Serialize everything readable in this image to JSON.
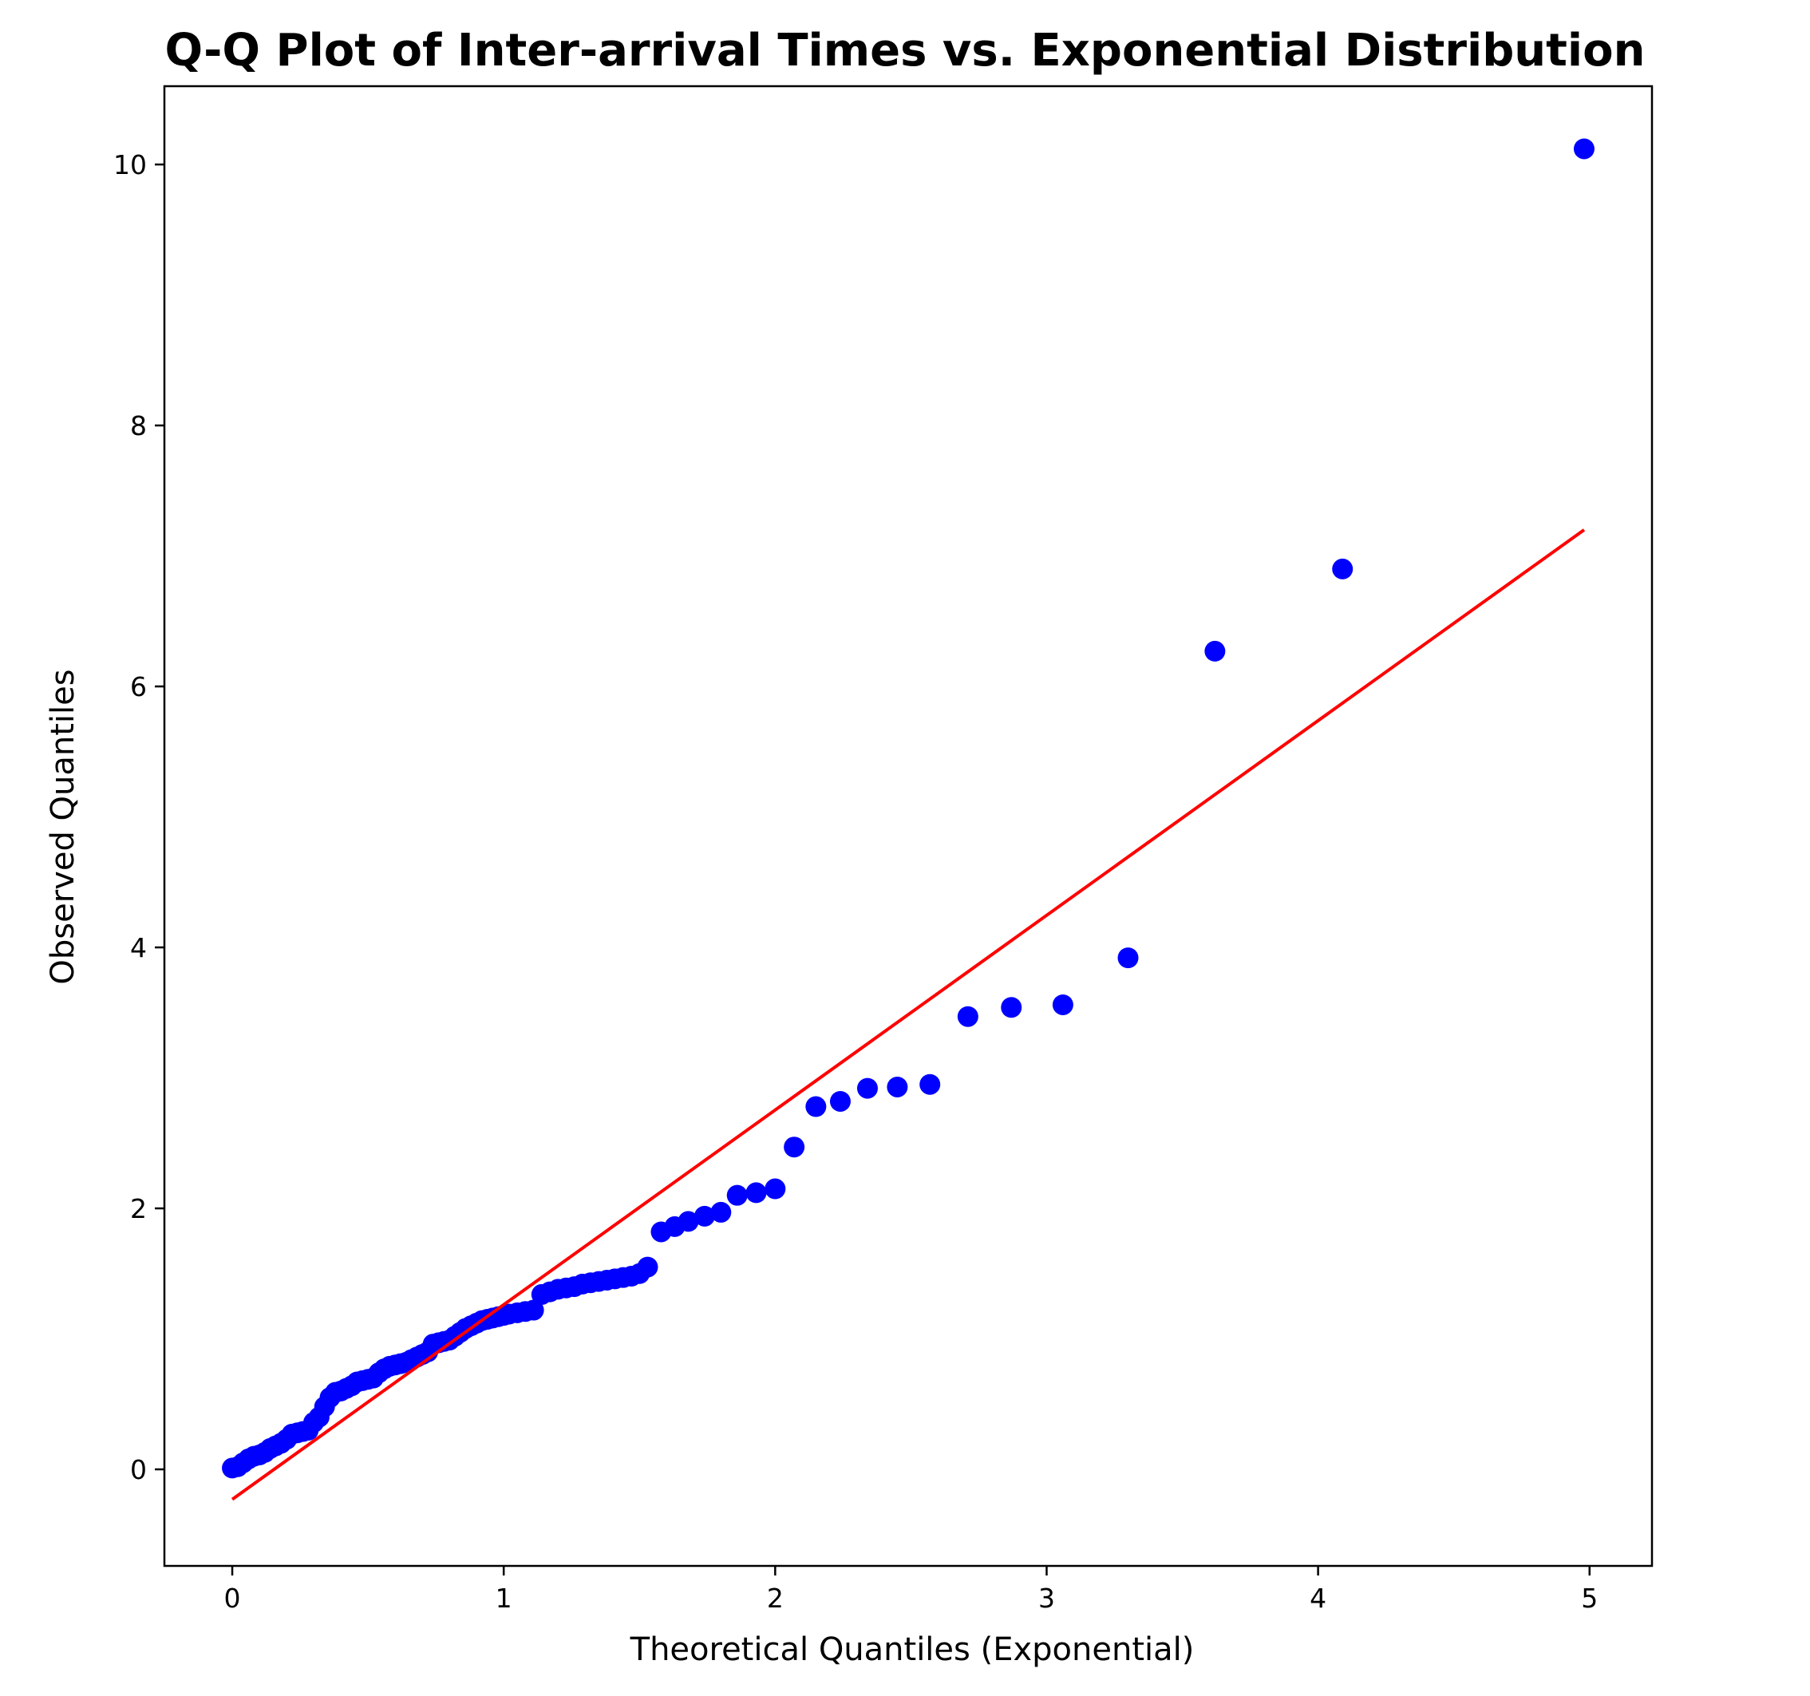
{
  "chart_data": {
    "type": "scatter",
    "title": "Q-Q Plot of Inter-arrival Times vs. Exponential Distribution",
    "xlabel": "Theoretical Quantiles (Exponential)",
    "ylabel": "Observed Quantiles",
    "xlim": [
      -0.25,
      5.23
    ],
    "ylim": [
      -0.74,
      10.6
    ],
    "grid": false,
    "legend": null,
    "x_ticks": [
      "0",
      "1",
      "2",
      "3",
      "4",
      "5"
    ],
    "y_ticks": [
      "0",
      "2",
      "4",
      "6",
      "8",
      "10"
    ],
    "colors": {
      "points": "#0000ff",
      "line": "#ff0000",
      "axes": "#000000",
      "background": "#ffffff"
    },
    "series": [
      {
        "kind": "points",
        "x": [
          0.0,
          0.02,
          0.04,
          0.06,
          0.08,
          0.1,
          0.12,
          0.14,
          0.16,
          0.18,
          0.2,
          0.22,
          0.24,
          0.26,
          0.28,
          0.3,
          0.32,
          0.34,
          0.36,
          0.38,
          0.4,
          0.42,
          0.44,
          0.46,
          0.48,
          0.5,
          0.52,
          0.54,
          0.56,
          0.58,
          0.6,
          0.62,
          0.64,
          0.66,
          0.68,
          0.7,
          0.72,
          0.74,
          0.76,
          0.78,
          0.8,
          0.82,
          0.84,
          0.86,
          0.88,
          0.9,
          0.92,
          0.94,
          0.96,
          0.98,
          1.0,
          1.02,
          1.05,
          1.08,
          1.11,
          1.14,
          1.17,
          1.2,
          1.23,
          1.26,
          1.29,
          1.32,
          1.35,
          1.38,
          1.41,
          1.44,
          1.47,
          1.5,
          1.53,
          1.58,
          1.63,
          1.68,
          1.74,
          1.8,
          1.86,
          1.93,
          2.0,
          2.07,
          2.15,
          2.24,
          2.34,
          2.45,
          2.57,
          2.71,
          2.87,
          3.06,
          3.3,
          3.62,
          4.09,
          4.98
        ],
        "y": [
          0.01,
          0.02,
          0.05,
          0.08,
          0.1,
          0.11,
          0.13,
          0.16,
          0.18,
          0.2,
          0.23,
          0.27,
          0.28,
          0.29,
          0.3,
          0.36,
          0.4,
          0.48,
          0.55,
          0.59,
          0.6,
          0.62,
          0.64,
          0.67,
          0.68,
          0.69,
          0.7,
          0.74,
          0.77,
          0.79,
          0.8,
          0.81,
          0.82,
          0.84,
          0.86,
          0.88,
          0.9,
          0.96,
          0.97,
          0.98,
          0.99,
          1.02,
          1.05,
          1.08,
          1.1,
          1.12,
          1.14,
          1.15,
          1.16,
          1.17,
          1.18,
          1.19,
          1.2,
          1.21,
          1.22,
          1.34,
          1.36,
          1.38,
          1.39,
          1.4,
          1.42,
          1.43,
          1.44,
          1.45,
          1.46,
          1.47,
          1.48,
          1.5,
          1.55,
          1.82,
          1.86,
          1.9,
          1.94,
          1.97,
          2.1,
          2.12,
          2.15,
          2.47,
          2.78,
          2.82,
          2.92,
          2.93,
          2.95,
          3.47,
          3.54,
          3.56,
          3.92,
          6.27,
          6.9,
          10.12
        ]
      },
      {
        "kind": "line",
        "x": [
          0.0,
          4.98
        ],
        "y": [
          -0.23,
          7.2
        ]
      }
    ]
  }
}
